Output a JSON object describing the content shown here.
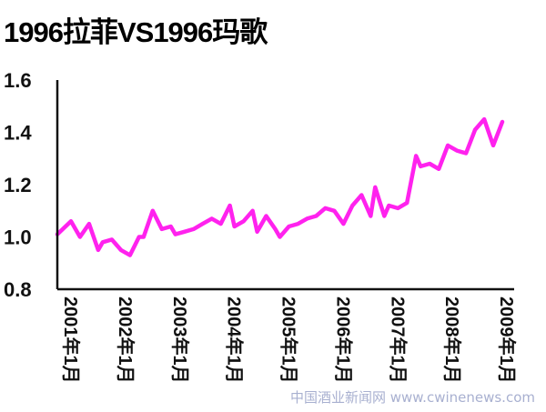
{
  "chart_data": {
    "type": "line",
    "title": "1996拉菲VS1996玛歌",
    "xlabel": "",
    "ylabel": "",
    "ylim": [
      0.8,
      1.6
    ],
    "y_ticks": [
      "1.6",
      "1.4",
      "1.2",
      "1.0",
      "0.8"
    ],
    "grid": false,
    "x_ticks": [
      {
        "label": "2001年1月",
        "x": "2001-01"
      },
      {
        "label": "2002年1月",
        "x": "2002-01"
      },
      {
        "label": "2003年1月",
        "x": "2003-01"
      },
      {
        "label": "2004年1月",
        "x": "2004-01"
      },
      {
        "label": "2005年1月",
        "x": "2005-01"
      },
      {
        "label": "2006年1月",
        "x": "2006-01"
      },
      {
        "label": "2007年1月",
        "x": "2007-01"
      },
      {
        "label": "2008年1月",
        "x": "2008-01"
      },
      {
        "label": "2009年1月",
        "x": "2009-01"
      }
    ],
    "series": [
      {
        "color": "#ff22ee",
        "x": [
          "2001-01",
          "2001-04",
          "2001-06",
          "2001-08",
          "2001-10",
          "2001-11",
          "2002-01",
          "2002-03",
          "2002-05",
          "2002-07",
          "2002-08",
          "2002-10",
          "2002-12",
          "2003-02",
          "2003-03",
          "2003-05",
          "2003-07",
          "2003-09",
          "2003-11",
          "2004-01",
          "2004-03",
          "2004-04",
          "2004-06",
          "2004-08",
          "2004-09",
          "2004-11",
          "2005-01",
          "2005-02",
          "2005-04",
          "2005-06",
          "2005-08",
          "2005-10",
          "2005-12",
          "2006-02",
          "2006-04",
          "2006-06",
          "2006-08",
          "2006-10",
          "2006-11",
          "2007-01",
          "2007-02",
          "2007-04",
          "2007-06",
          "2007-08",
          "2007-09",
          "2007-11",
          "2008-01",
          "2008-03",
          "2008-05",
          "2008-07",
          "2008-09",
          "2008-11",
          "2009-01",
          "2009-03"
        ],
        "values": [
          1.01,
          1.06,
          1.0,
          1.05,
          0.95,
          0.98,
          0.99,
          0.95,
          0.93,
          1.0,
          1.0,
          1.1,
          1.03,
          1.04,
          1.01,
          1.02,
          1.03,
          1.05,
          1.07,
          1.05,
          1.12,
          1.04,
          1.06,
          1.1,
          1.02,
          1.08,
          1.03,
          1.0,
          1.04,
          1.05,
          1.07,
          1.08,
          1.11,
          1.1,
          1.05,
          1.12,
          1.16,
          1.08,
          1.19,
          1.08,
          1.12,
          1.11,
          1.13,
          1.31,
          1.27,
          1.28,
          1.26,
          1.35,
          1.33,
          1.32,
          1.41,
          1.45,
          1.35,
          1.44
        ]
      }
    ]
  },
  "watermark": "中国酒业新闻网 www.cwinenews.com"
}
